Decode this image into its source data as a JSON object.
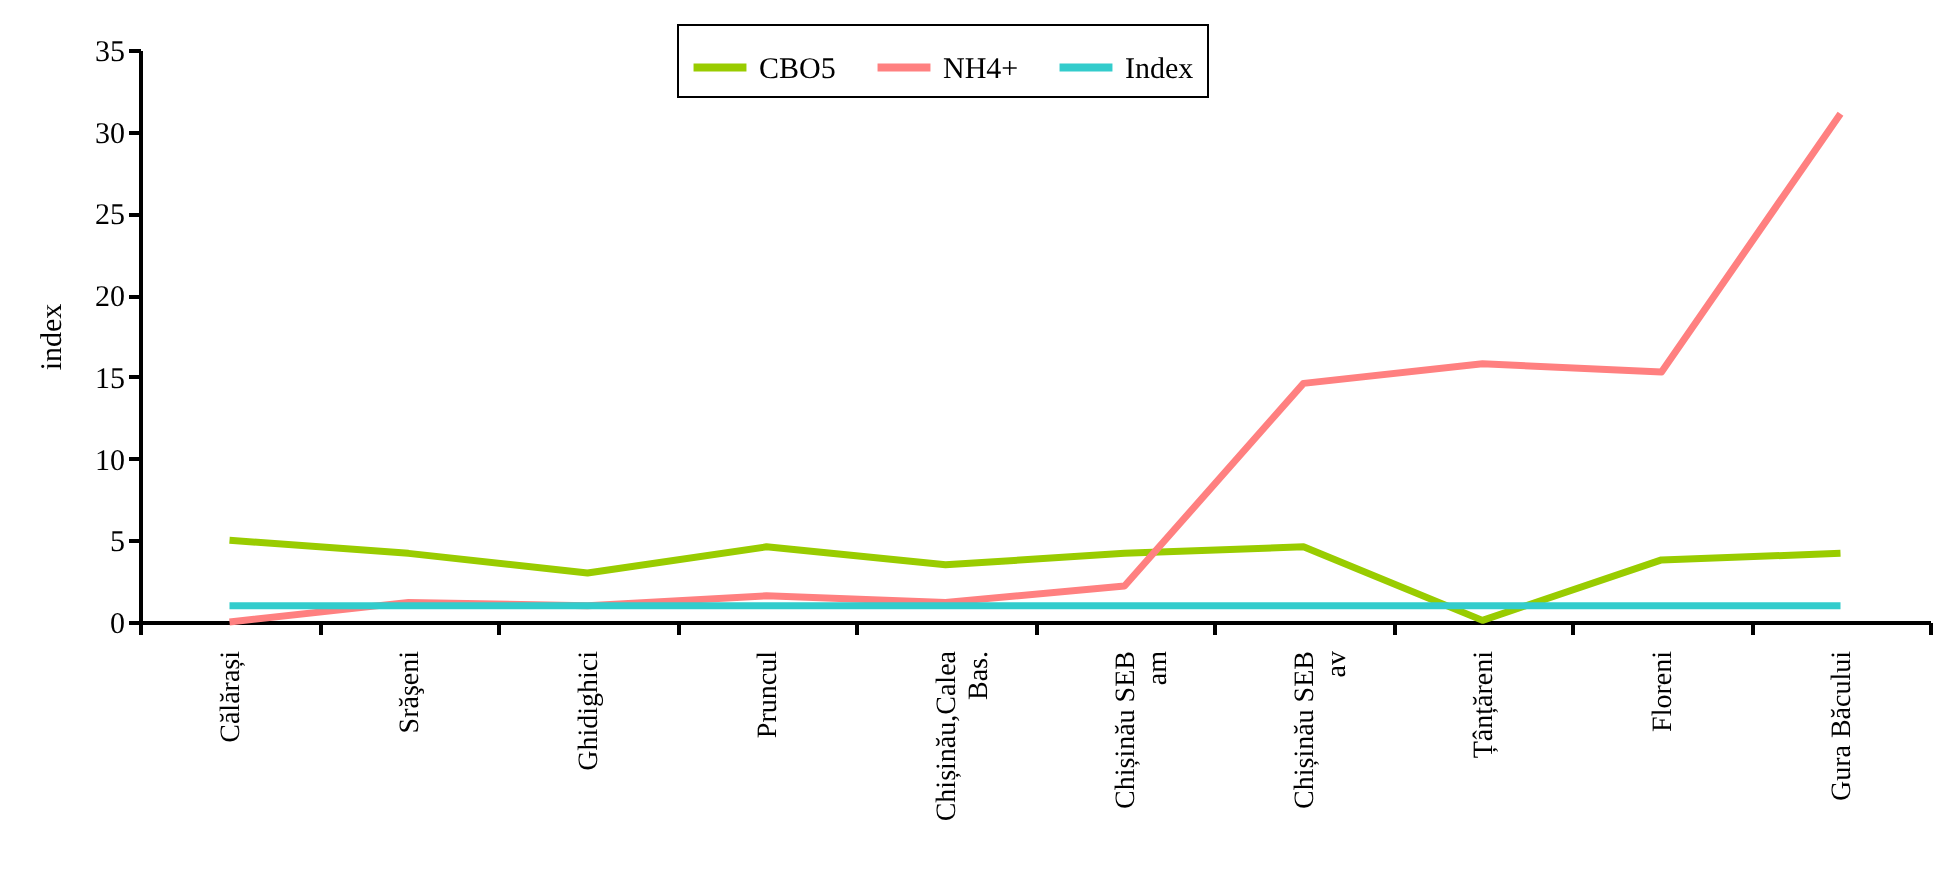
{
  "chart_data": {
    "type": "line",
    "ylabel": "index",
    "categories": [
      "Călărași",
      "Srăşeni",
      "Ghidighici",
      "Pruncul",
      "Chișinău,Calea Bas.",
      "Chișinău SEB am",
      "Chișinău SEB av",
      "Țânțăreni",
      "Floreni",
      "Gura Băcului"
    ],
    "series": [
      {
        "name": "CBO5",
        "color": "#99cc00",
        "values": [
          5.0,
          4.2,
          3.0,
          4.6,
          3.5,
          4.2,
          4.6,
          0.1,
          3.8,
          4.2
        ]
      },
      {
        "name": "NH4+",
        "color": "#ff8080",
        "values": [
          0,
          1.2,
          1.0,
          1.6,
          1.2,
          2.2,
          14.6,
          15.8,
          15.3,
          31.1
        ]
      },
      {
        "name": "Index",
        "color": "#33cccc",
        "values": [
          1,
          1,
          1,
          1,
          1,
          1,
          1,
          1,
          1,
          1
        ]
      }
    ],
    "ylim": [
      0,
      35
    ],
    "yticks": [
      0,
      5,
      10,
      15,
      20,
      25,
      30,
      35
    ],
    "grid": false,
    "legend": "top"
  }
}
